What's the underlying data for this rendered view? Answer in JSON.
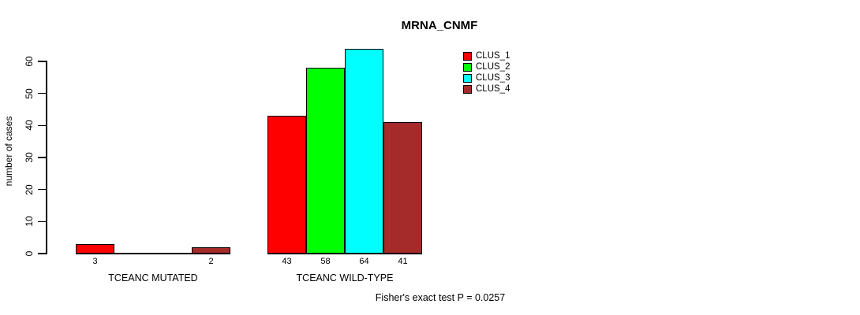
{
  "chart_data": {
    "type": "bar",
    "title": "MRNA_CNMF",
    "ylabel": "number of cases",
    "xlabel": "",
    "categories": [
      "TCEANC MUTATED",
      "TCEANC WILD-TYPE"
    ],
    "series": [
      {
        "name": "CLUS_1",
        "color": "#FF0000",
        "values": [
          3,
          43
        ]
      },
      {
        "name": "CLUS_2",
        "color": "#00FF00",
        "values": [
          0,
          58
        ]
      },
      {
        "name": "CLUS_3",
        "color": "#00FFFF",
        "values": [
          0,
          64
        ]
      },
      {
        "name": "CLUS_4",
        "color": "#A52A2A",
        "values": [
          2,
          41
        ]
      }
    ],
    "bar_value_labels_shown": [
      [
        "3",
        null,
        null,
        "2"
      ],
      [
        "43",
        "58",
        "64",
        "41"
      ]
    ],
    "yticks": [
      0,
      10,
      20,
      30,
      40,
      50,
      60
    ],
    "ylim": [
      0,
      60
    ],
    "grid": false,
    "legend_position": "top-right",
    "annotation": "Fisher's exact test P = 0.0257",
    "axis_color": "#000000",
    "text_color": "#000000",
    "background_color": "#FFFFFF"
  }
}
